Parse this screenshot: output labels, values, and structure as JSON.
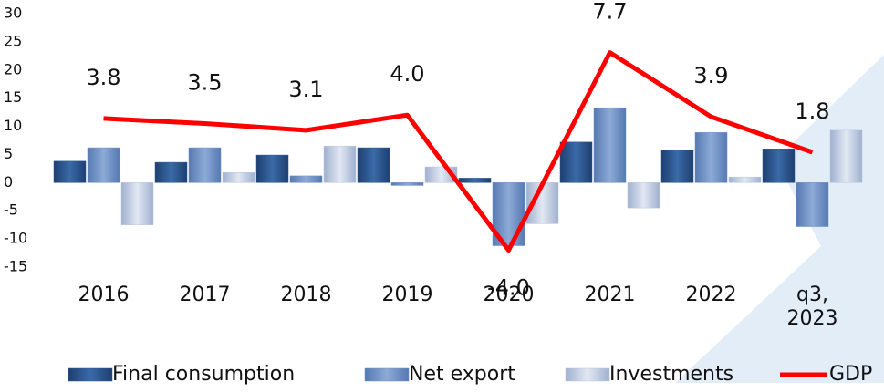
{
  "chart_data": {
    "type": "bar",
    "categories": [
      "2016",
      "2017",
      "2018",
      "2019",
      "2020",
      "2021",
      "2022",
      "q3, 2023"
    ],
    "series": [
      {
        "name": "Final consumption",
        "color": "#2e5a94",
        "values": [
          3.8,
          3.6,
          4.9,
          6.2,
          0.8,
          7.2,
          5.8,
          6.0
        ]
      },
      {
        "name": "Net export",
        "color": "#6f92c7",
        "values": [
          6.2,
          6.2,
          1.2,
          -0.5,
          -11.2,
          13.3,
          8.9,
          -7.8
        ]
      },
      {
        "name": "Investments",
        "color": "#b9c6de",
        "values": [
          -7.5,
          1.8,
          6.5,
          2.8,
          -7.3,
          -4.5,
          1.0,
          9.3
        ]
      },
      {
        "name": "GDP",
        "type": "line",
        "axis": "y2",
        "color": "#ff0000",
        "values": [
          3.8,
          3.5,
          3.1,
          4.0,
          -4.0,
          7.7,
          3.9,
          1.8
        ],
        "value_labels": [
          "3.8",
          "3.5",
          "3.1",
          "4.0",
          "-4.0",
          "7.7",
          "3.9",
          "1.8"
        ]
      }
    ],
    "ylim": [
      -15,
      30
    ],
    "yticks": [
      -15,
      -10,
      -5,
      0,
      5,
      10,
      15,
      20,
      25,
      30
    ],
    "y2lim": [
      -5,
      10
    ],
    "grid": false,
    "legend": "bottom"
  }
}
